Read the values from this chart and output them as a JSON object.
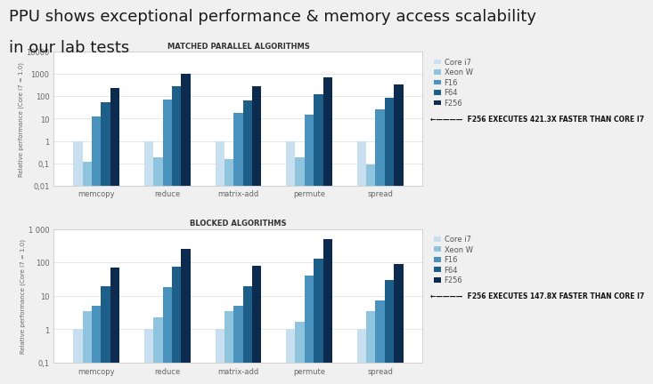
{
  "title_line1": "PPU shows exceptional performance & memory access scalability",
  "title_line2": "in our lab tests",
  "title_fontsize": 13,
  "categories": [
    "memcopy",
    "reduce",
    "matrix-add",
    "permute",
    "spread"
  ],
  "series": [
    "Core i7",
    "Xeon W",
    "F16",
    "F64",
    "F256"
  ],
  "colors": [
    "#c8dff0",
    "#8ec4de",
    "#4a93be",
    "#1e5f8a",
    "#0d2b4e"
  ],
  "chart1_title": "MATCHED PARALLEL ALGORITHMS",
  "chart2_title": "BLOCKED ALGORITHMS",
  "ylabel": "Relative performance (Core i7 = 1.0)",
  "annotation1": "←————  F256 EXECUTES 421.3X FASTER THAN CORE I7",
  "annotation2": "←————  F256 EXECUTES 147.8X FASTER THAN CORE I7",
  "chart1_data": {
    "Core i7": [
      1.0,
      1.0,
      1.0,
      1.0,
      1.0
    ],
    "Xeon W": [
      0.12,
      0.18,
      0.15,
      0.18,
      0.09
    ],
    "F16": [
      13,
      75,
      18,
      15,
      25
    ],
    "F64": [
      55,
      280,
      65,
      130,
      90
    ],
    "F256": [
      230,
      1000,
      280,
      700,
      340
    ]
  },
  "chart2_data": {
    "Core i7": [
      1.0,
      1.0,
      1.0,
      1.0,
      1.0
    ],
    "Xeon W": [
      3.5,
      2.3,
      3.5,
      1.7,
      3.5
    ],
    "F16": [
      5.0,
      18,
      5.0,
      40,
      7.5
    ],
    "F64": [
      19,
      75,
      19,
      130,
      30
    ],
    "F256": [
      70,
      250,
      80,
      500,
      90
    ]
  },
  "bg_color": "#f0f0f0",
  "chart_bg": "#ffffff",
  "grid_color": "#dddddd"
}
